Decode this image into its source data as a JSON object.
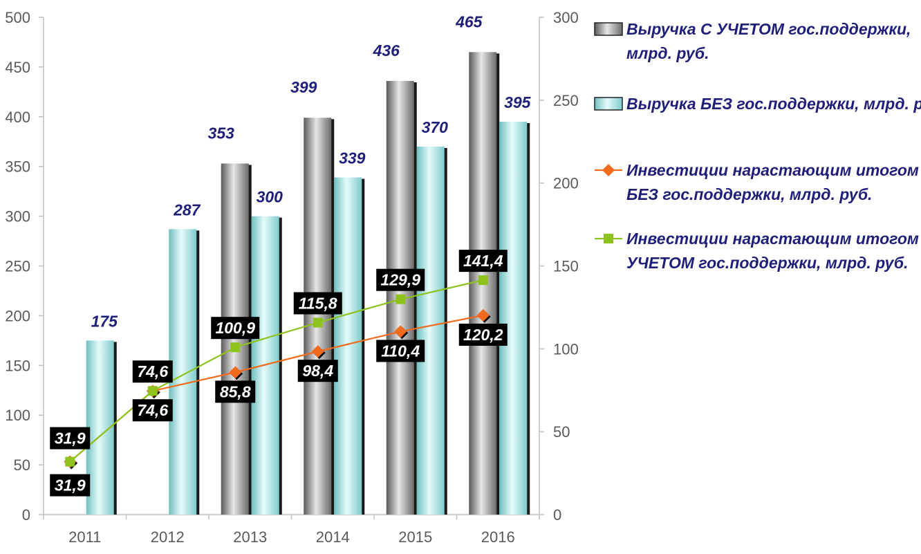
{
  "chart_data": {
    "type": "bar",
    "categories": [
      "2011",
      "2012",
      "2013",
      "2014",
      "2015",
      "2016"
    ],
    "y_left": {
      "ticks": [
        "0",
        "50",
        "100",
        "150",
        "200",
        "250",
        "300",
        "350",
        "400",
        "450",
        "500"
      ],
      "range": [
        0,
        500
      ]
    },
    "y_right": {
      "ticks": [
        "0",
        "50",
        "100",
        "150",
        "200",
        "250",
        "300"
      ],
      "range": [
        0,
        300
      ]
    },
    "grid": false,
    "legend_position": "right",
    "series": [
      {
        "name": "Выручка С УЧЕТОМ гос.поддержки, млрд. руб.",
        "legend_lines": [
          "Выручка С УЧЕТОМ гос.поддержки,",
          "млрд. руб."
        ],
        "kind": "bar",
        "axis": "left",
        "color": "#8c8c8c",
        "values": [
          null,
          null,
          353,
          399,
          436,
          465
        ],
        "labels": [
          "",
          "",
          "353",
          "399",
          "436",
          "465"
        ]
      },
      {
        "name": "Выручка БЕЗ гос.поддержки, млрд. руб.",
        "legend_lines": [
          "Выручка БЕЗ гос.поддержки, млрд. руб."
        ],
        "kind": "bar",
        "axis": "left",
        "color": "#9fdede",
        "values": [
          175,
          287,
          300,
          339,
          370,
          395
        ],
        "labels": [
          "175",
          "287",
          "300",
          "339",
          "370",
          "395"
        ]
      },
      {
        "name": "Инвестиции нарастающим итогом БЕЗ гос.поддержки, млрд. руб.",
        "legend_lines": [
          "Инвестиции нарастающим итогом",
          "БЕЗ гос.поддержки, млрд. руб."
        ],
        "kind": "line",
        "axis": "right",
        "color": "#f26b1d",
        "marker": "diamond",
        "values": [
          31.9,
          74.6,
          85.8,
          98.4,
          110.4,
          120.2
        ],
        "labels": [
          "31,9",
          "74,6",
          "85,8",
          "98,4",
          "110,4",
          "120,2"
        ]
      },
      {
        "name": "Инвестиции нарастающим итогом С УЧЕТОМ гос.поддержки, млрд. руб.",
        "legend_lines": [
          "Инвестиции нарастающим итогом С",
          "УЧЕТОМ гос.поддержки, млрд. руб."
        ],
        "kind": "line",
        "axis": "right",
        "color": "#8dc21f",
        "marker": "square",
        "values": [
          31.9,
          74.6,
          100.9,
          115.8,
          129.9,
          141.4
        ],
        "labels": [
          "31,9",
          "74,6",
          "100,9",
          "115,8",
          "129,9",
          "141,4"
        ]
      }
    ]
  }
}
